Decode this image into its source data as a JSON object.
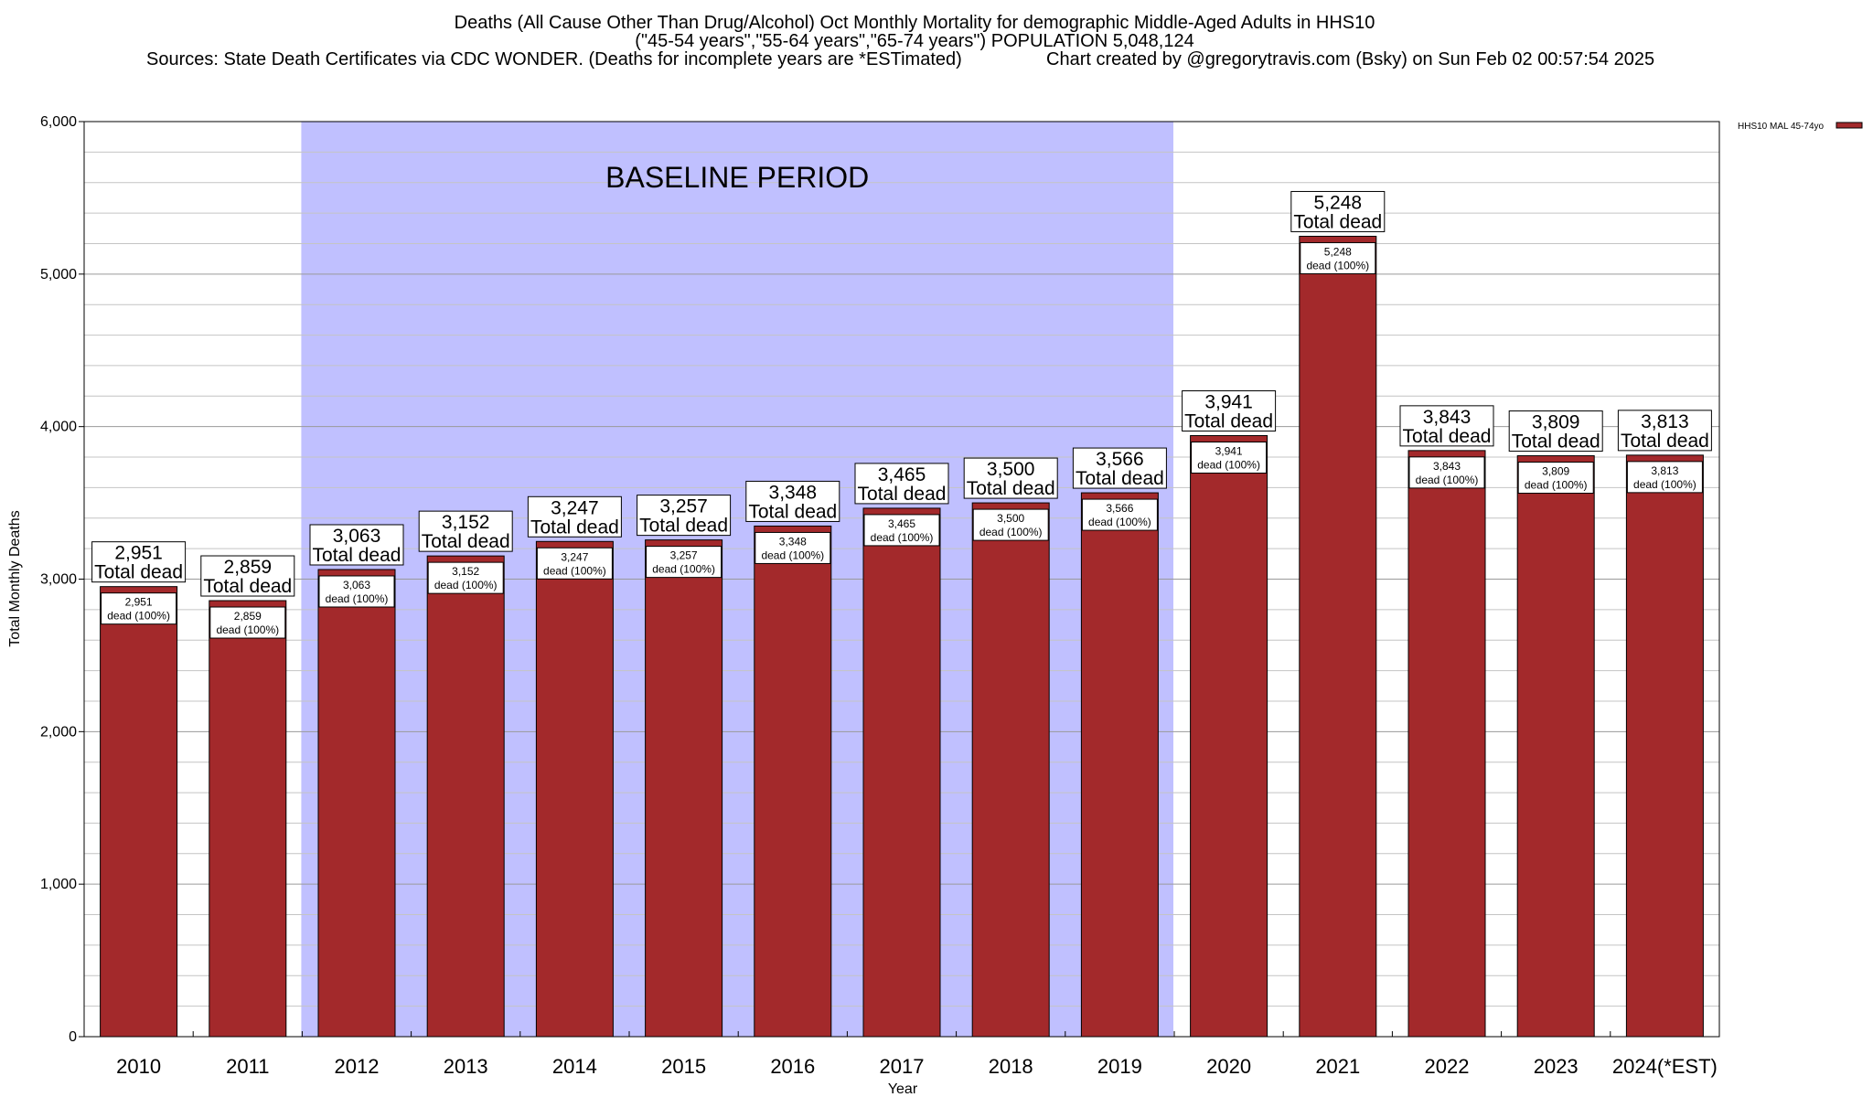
{
  "chart_data": {
    "type": "bar",
    "title_lines": [
      "Deaths (All Cause Other Than Drug/Alcohol) Oct Monthly Mortality for demographic Middle-Aged Adults in HHS10",
      "(\"45-54 years\",\"55-64 years\",\"65-74 years\") POPULATION 5,048,124",
      "Sources: State Death Certificates via CDC WONDER. (Deaths for incomplete years are *ESTimated)",
      "Chart created by @gregorytravis.com (Bsky) on Sun Feb 02 00:57:54 2025"
    ],
    "xlabel": "Year",
    "ylabel": "Total Monthly Deaths",
    "ylim": [
      0,
      6000
    ],
    "yticks": [
      0,
      1000,
      2000,
      3000,
      4000,
      5000,
      6000
    ],
    "ytick_labels": [
      "0",
      "1,000",
      "2,000",
      "3,000",
      "4,000",
      "5,000",
      "6,000"
    ],
    "grid": true,
    "categories": [
      "2010",
      "2011",
      "2012",
      "2013",
      "2014",
      "2015",
      "2016",
      "2017",
      "2018",
      "2019",
      "2020",
      "2021",
      "2022",
      "2023",
      "2024(*EST)"
    ],
    "series": [
      {
        "name": "HHS10 MAL 45-74yo",
        "color": "#a3292b",
        "values": [
          2951,
          2859,
          3063,
          3152,
          3247,
          3257,
          3348,
          3465,
          3500,
          3566,
          3941,
          5248,
          3843,
          3809,
          3813
        ]
      }
    ],
    "total_labels": [
      "2,951",
      "2,859",
      "3,063",
      "3,152",
      "3,247",
      "3,257",
      "3,348",
      "3,465",
      "3,500",
      "3,566",
      "3,941",
      "5,248",
      "3,843",
      "3,809",
      "3,813"
    ],
    "total_caption": "Total dead",
    "inner_caption": "dead (100%)",
    "baseline": {
      "label": "BASELINE PERIOD",
      "from": "2012",
      "to": "2019",
      "color": "#c0c0ff"
    },
    "legend": {
      "position": "top-right",
      "entries": [
        "HHS10 MAL 45-74yo"
      ]
    }
  }
}
